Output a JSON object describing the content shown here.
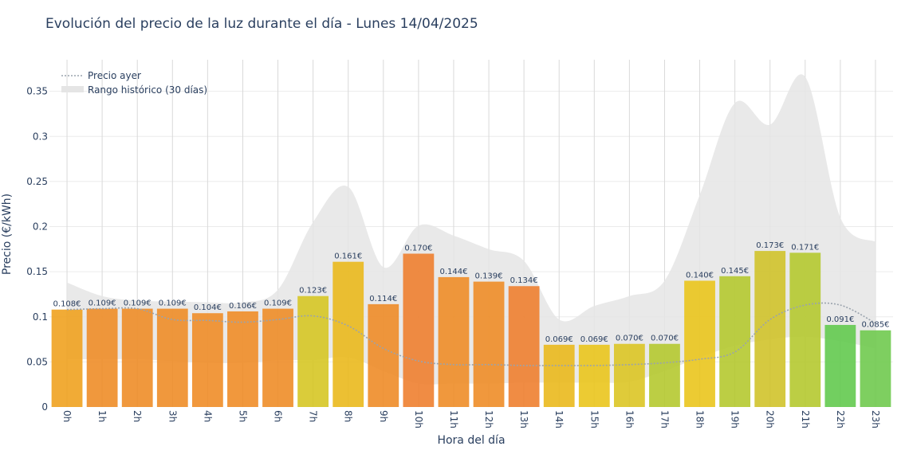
{
  "chart_data": {
    "type": "bar",
    "title": "Evolución del precio de la luz durante el día - Lunes 14/04/2025",
    "xlabel": "Hora del día",
    "ylabel": "Precio (€/kWh)",
    "ylim": [
      0,
      0.385
    ],
    "yticks": [
      0,
      0.05,
      0.1,
      0.15,
      0.2,
      0.25,
      0.3,
      0.35
    ],
    "ytick_labels": [
      "0",
      "0.05",
      "0.1",
      "0.15",
      "0.2",
      "0.25",
      "0.3",
      "0.35"
    ],
    "categories": [
      "0h",
      "1h",
      "2h",
      "3h",
      "4h",
      "5h",
      "6h",
      "7h",
      "8h",
      "9h",
      "10h",
      "11h",
      "12h",
      "13h",
      "14h",
      "15h",
      "16h",
      "17h",
      "18h",
      "19h",
      "20h",
      "21h",
      "22h",
      "23h"
    ],
    "series": [
      {
        "type": "bar",
        "values": [
          0.108,
          0.109,
          0.109,
          0.109,
          0.104,
          0.106,
          0.109,
          0.123,
          0.161,
          0.114,
          0.17,
          0.144,
          0.139,
          0.134,
          0.069,
          0.069,
          0.07,
          0.07,
          0.14,
          0.145,
          0.173,
          0.171,
          0.091,
          0.085
        ],
        "labels": [
          "0.108€",
          "0.109€",
          "0.109€",
          "0.109€",
          "0.104€",
          "0.106€",
          "0.109€",
          "0.123€",
          "0.161€",
          "0.114€",
          "0.170€",
          "0.144€",
          "0.139€",
          "0.134€",
          "0.069€",
          "0.069€",
          "0.070€",
          "0.070€",
          "0.140€",
          "0.145€",
          "0.173€",
          "0.171€",
          "0.091€",
          "0.085€"
        ],
        "colors": [
          "#ef9f1a",
          "#ee8a22",
          "#ee8a22",
          "#ee8a22",
          "#ef8a22",
          "#ef8a22",
          "#ee8a22",
          "#d5c51f",
          "#e9b717",
          "#ee8922",
          "#ee7c2a",
          "#ee8a22",
          "#ee8a22",
          "#ee7c2a",
          "#e9b717",
          "#e9c417",
          "#dbc41f",
          "#b3c72a",
          "#e9c417",
          "#b3c72a",
          "#cfc225",
          "#b3c72a",
          "#5fc84a",
          "#6cc84a"
        ]
      },
      {
        "name": "Precio ayer",
        "type": "line",
        "style": "dotted",
        "color": "#9aa3ad",
        "values": [
          0.108,
          0.109,
          0.109,
          0.097,
          0.096,
          0.094,
          0.097,
          0.101,
          0.09,
          0.065,
          0.051,
          0.047,
          0.047,
          0.046,
          0.046,
          0.046,
          0.047,
          0.049,
          0.053,
          0.061,
          0.097,
          0.113,
          0.113,
          0.093
        ]
      },
      {
        "name": "Rango histórico (30 días)",
        "type": "area",
        "color": "#e5e5e5",
        "upper": [
          0.138,
          0.123,
          0.118,
          0.117,
          0.116,
          0.116,
          0.13,
          0.205,
          0.244,
          0.155,
          0.201,
          0.19,
          0.175,
          0.162,
          0.097,
          0.112,
          0.123,
          0.14,
          0.235,
          0.337,
          0.313,
          0.366,
          0.21,
          0.183
        ],
        "lower": [
          0.053,
          0.053,
          0.053,
          0.051,
          0.049,
          0.049,
          0.052,
          0.052,
          0.055,
          0.04,
          0.026,
          0.026,
          0.026,
          0.027,
          0.027,
          0.027,
          0.028,
          0.04,
          0.055,
          0.068,
          0.075,
          0.078,
          0.073,
          0.065
        ]
      }
    ],
    "legend": {
      "position": "top-left",
      "entries": [
        "Precio ayer",
        "Rango histórico (30 días)"
      ]
    },
    "grid": true,
    "colors": {
      "grid": "#dddddd",
      "text": "#2a3f5f",
      "range": "#e5e5e5",
      "yesterday": "#9aa3ad"
    }
  }
}
